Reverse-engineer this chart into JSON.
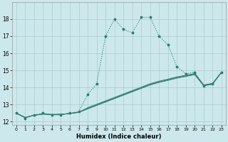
{
  "title": "",
  "xlabel": "Humidex (Indice chaleur)",
  "bg_color": "#cce8ec",
  "grid_color": "#aacccc",
  "line_color": "#2e7d6e",
  "xlim": [
    -0.5,
    23.5
  ],
  "ylim": [
    11.8,
    19.0
  ],
  "xticks": [
    0,
    1,
    2,
    3,
    4,
    5,
    6,
    7,
    8,
    9,
    10,
    11,
    12,
    13,
    14,
    15,
    16,
    17,
    18,
    19,
    20,
    21,
    22,
    23
  ],
  "yticks": [
    12,
    13,
    14,
    15,
    16,
    17,
    18
  ],
  "series_main": [
    12.5,
    12.2,
    12.4,
    12.5,
    12.4,
    12.4,
    12.5,
    12.6,
    13.6,
    14.2,
    17.0,
    18.0,
    17.4,
    17.2,
    18.1,
    18.1,
    17.0,
    16.5,
    15.2,
    14.8,
    14.9,
    14.1,
    14.2,
    14.9
  ],
  "series_linear1": [
    12.5,
    12.25,
    12.38,
    12.45,
    12.42,
    12.43,
    12.48,
    12.55,
    12.75,
    12.95,
    13.15,
    13.35,
    13.55,
    13.75,
    13.95,
    14.15,
    14.3,
    14.42,
    14.55,
    14.65,
    14.75,
    14.1,
    14.2,
    14.9
  ],
  "series_linear2": [
    12.5,
    12.25,
    12.38,
    12.45,
    12.42,
    12.43,
    12.48,
    12.55,
    12.78,
    12.98,
    13.18,
    13.38,
    13.58,
    13.78,
    13.98,
    14.18,
    14.33,
    14.45,
    14.58,
    14.68,
    14.78,
    14.12,
    14.22,
    14.9
  ],
  "series_linear3": [
    12.5,
    12.25,
    12.38,
    12.45,
    12.42,
    12.43,
    12.48,
    12.55,
    12.82,
    13.02,
    13.22,
    13.42,
    13.62,
    13.82,
    14.02,
    14.22,
    14.37,
    14.49,
    14.62,
    14.72,
    14.82,
    14.15,
    14.25,
    14.9
  ]
}
